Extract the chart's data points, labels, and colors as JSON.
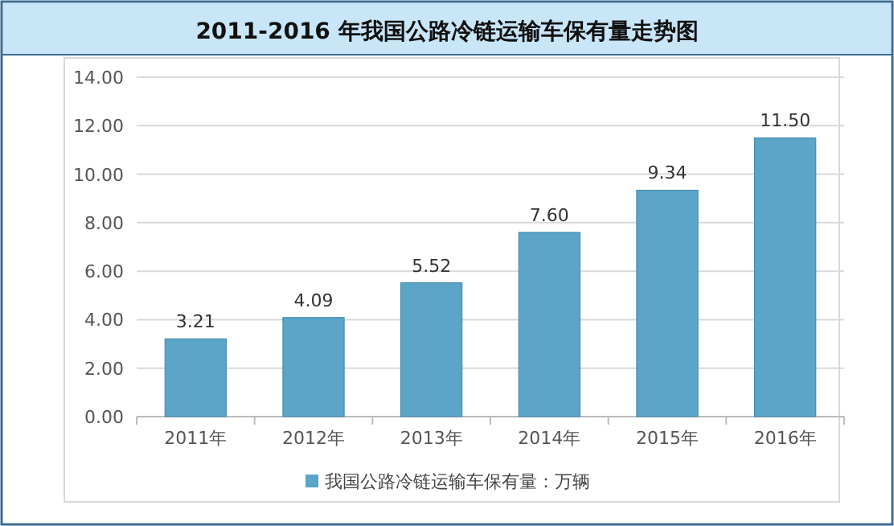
{
  "chart_data": {
    "type": "bar",
    "title": "2011-2016 年我国公路冷链运输车保有量走势图",
    "categories": [
      "2011年",
      "2012年",
      "2013年",
      "2014年",
      "2015年",
      "2016年"
    ],
    "series": [
      {
        "name": "我国公路冷链运输车保有量：万辆",
        "color": "#5aa5c8",
        "values": [
          3.21,
          4.09,
          5.52,
          7.6,
          9.34,
          11.5
        ],
        "value_labels": [
          "3.21",
          "4.09",
          "5.52",
          "7.60",
          "9.34",
          "11.50"
        ]
      }
    ],
    "ylim": [
      0,
      14
    ],
    "yticks": [
      {
        "value": 0,
        "label": "0.00"
      },
      {
        "value": 2,
        "label": "2.00"
      },
      {
        "value": 4,
        "label": "4.00"
      },
      {
        "value": 6,
        "label": "6.00"
      },
      {
        "value": 8,
        "label": "8.00"
      },
      {
        "value": 10,
        "label": "10.00"
      },
      {
        "value": 12,
        "label": "12.00"
      },
      {
        "value": 14,
        "label": "14.00"
      }
    ],
    "grid": "y",
    "legend": "bottom"
  }
}
